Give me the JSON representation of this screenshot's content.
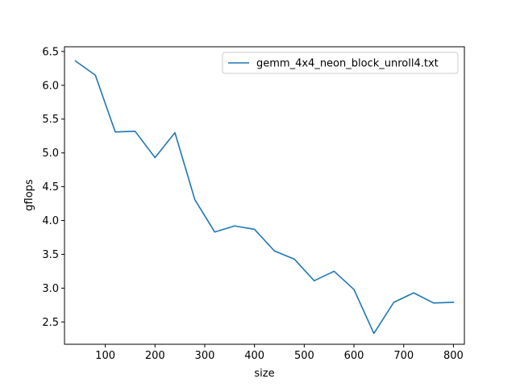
{
  "chart_data": {
    "type": "line",
    "title": "",
    "xlabel": "size",
    "ylabel": "gflops",
    "xlim": [
      18,
      822
    ],
    "ylim": [
      2.17,
      6.57
    ],
    "xticks": [
      100,
      200,
      300,
      400,
      500,
      600,
      700,
      800
    ],
    "xtick_labels": [
      "100",
      "200",
      "300",
      "400",
      "500",
      "600",
      "700",
      "800"
    ],
    "yticks": [
      2.5,
      3.0,
      3.5,
      4.0,
      4.5,
      5.0,
      5.5,
      6.0,
      6.5
    ],
    "ytick_labels": [
      "2.5",
      "3.0",
      "3.5",
      "4.0",
      "4.5",
      "5.0",
      "5.5",
      "6.0",
      "6.5"
    ],
    "grid": false,
    "legend_position": "top-right",
    "x": [
      40,
      80,
      120,
      160,
      200,
      240,
      280,
      320,
      360,
      400,
      440,
      480,
      520,
      560,
      600,
      640,
      680,
      720,
      760,
      800
    ],
    "series": [
      {
        "name": "gemm_4x4_neon_block_unroll4.txt",
        "color": "#1f77b4",
        "values": [
          6.36,
          6.15,
          5.31,
          5.32,
          4.93,
          5.3,
          4.31,
          3.83,
          3.92,
          3.87,
          3.55,
          3.43,
          3.11,
          3.25,
          2.98,
          2.33,
          2.79,
          2.93,
          2.78,
          2.79
        ]
      }
    ]
  }
}
